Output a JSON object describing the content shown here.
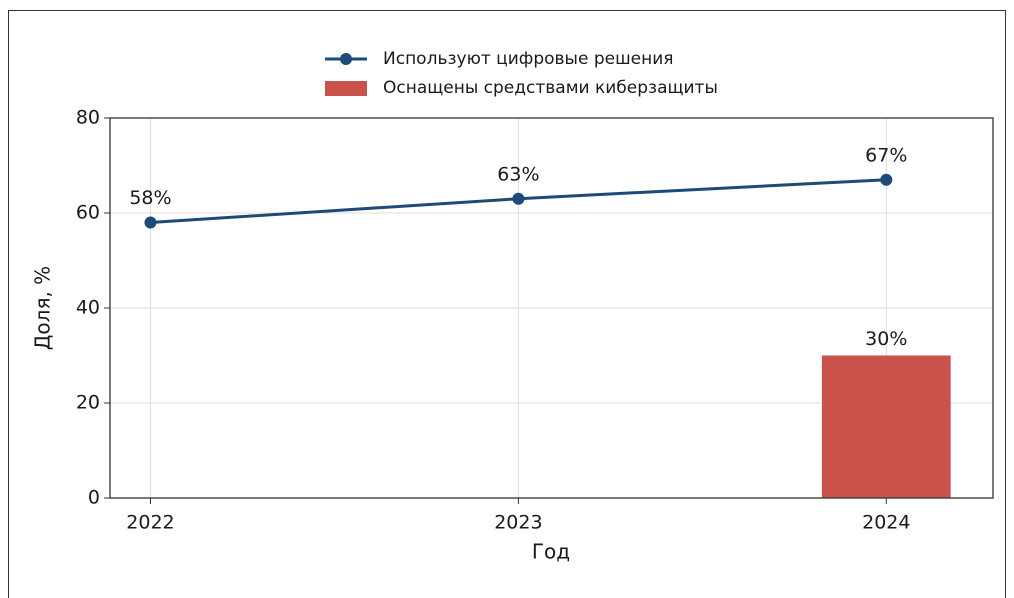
{
  "chart_data": {
    "type": "line",
    "x": [
      2022,
      2023,
      2024
    ],
    "series": [
      {
        "name": "Используют цифровые решения",
        "type": "line",
        "color": "#1d4a78",
        "values": [
          58,
          63,
          67
        ],
        "value_labels": [
          "58%",
          "63%",
          "67%"
        ]
      },
      {
        "name": "Оснащены средствами киберзащиты",
        "type": "bar",
        "color": "#c9524a",
        "values": [
          null,
          null,
          30
        ],
        "value_labels": [
          null,
          null,
          "30%"
        ]
      }
    ],
    "xlabel": "Год",
    "ylabel": "Доля, %",
    "xlim": [
      2021.89,
      2024.29
    ],
    "xticks": [
      2022,
      2023,
      2024
    ],
    "ylim": [
      0,
      80
    ],
    "yticks": [
      0,
      20,
      40,
      60,
      80
    ],
    "grid": true,
    "legend": "upper center"
  }
}
